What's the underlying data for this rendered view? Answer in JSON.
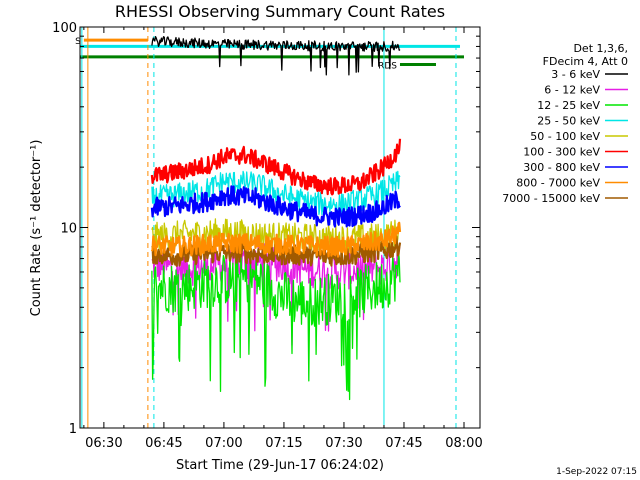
{
  "chart_data": {
    "type": "line",
    "title": "RHESSI Observing Summary Count Rates",
    "xlabel": "Start Time (29-Jun-17 06:24:02)",
    "ylabel": "Count Rate (s⁻¹ detector⁻¹)",
    "y_scale": "log",
    "ylim": [
      1,
      100
    ],
    "y_ticks": [
      {
        "value": 1,
        "label": "1"
      },
      {
        "value": 10,
        "label": "10"
      },
      {
        "value": 100,
        "label": "100"
      }
    ],
    "xlim": [
      "06:24:02",
      "08:04:00"
    ],
    "x_ticks": [
      {
        "time": "06:30",
        "label": "06:30"
      },
      {
        "time": "06:45",
        "label": "06:45"
      },
      {
        "time": "07:00",
        "label": "07:00"
      },
      {
        "time": "07:15",
        "label": "07:15"
      },
      {
        "time": "07:30",
        "label": "07:30"
      },
      {
        "time": "07:45",
        "label": "07:45"
      },
      {
        "time": "08:00",
        "label": "08:00"
      }
    ],
    "legend": {
      "placement": "right",
      "header": [
        "Det 1,3,6,",
        "FDecim 4, Att 0"
      ],
      "entries": [
        {
          "label": "3 - 6 keV",
          "color": "#000000"
        },
        {
          "label": "6 - 12 keV",
          "color": "#e61ee6"
        },
        {
          "label": "12 - 25 keV",
          "color": "#00e600"
        },
        {
          "label": "25 - 50 keV",
          "color": "#00e6e6"
        },
        {
          "label": "50 - 100 keV",
          "color": "#c8c800"
        },
        {
          "label": "100 - 300 keV",
          "color": "#ff0000"
        },
        {
          "label": "300 - 800 keV",
          "color": "#0000ff"
        },
        {
          "label": "800 - 7000 keV",
          "color": "#ff8c00"
        },
        {
          "label": "7000 - 15000 keV",
          "color": "#a05a00"
        }
      ]
    },
    "series": [
      {
        "name": "3 - 6 keV",
        "color": "#000000",
        "x": [
          "06:42",
          "06:48",
          "07:00",
          "07:15",
          "07:30",
          "07:40",
          "07:44"
        ],
        "y": [
          85,
          84,
          82,
          81,
          80,
          80,
          80
        ]
      },
      {
        "name": "6 - 12 keV",
        "color": "#e61ee6",
        "x": [
          "06:42",
          "06:48",
          "07:00",
          "07:10",
          "07:20",
          "07:30",
          "07:40",
          "07:44"
        ],
        "y": [
          6.5,
          6.2,
          6.5,
          6.8,
          6.2,
          6.0,
          6.3,
          7.0
        ]
      },
      {
        "name": "12 - 25 keV",
        "color": "#00e600",
        "x": [
          "06:42",
          "06:48",
          "07:00",
          "07:08",
          "07:14",
          "07:20",
          "07:26",
          "07:32",
          "07:40",
          "07:44"
        ],
        "y": [
          5.2,
          5.0,
          5.5,
          5.6,
          4.6,
          4.2,
          4.4,
          4.6,
          5.2,
          6.0
        ]
      },
      {
        "name": "25 - 50 keV",
        "color": "#00e6e6",
        "x": [
          "06:42",
          "06:48",
          "06:56",
          "07:00",
          "07:08",
          "07:15",
          "07:22",
          "07:30",
          "07:38",
          "07:44"
        ],
        "y": [
          14,
          14.5,
          15.5,
          17,
          16.5,
          14.5,
          13.2,
          13,
          14.5,
          17
        ]
      },
      {
        "name": "50 - 100 keV",
        "color": "#c8c800",
        "x": [
          "06:42",
          "06:48",
          "07:00",
          "07:15",
          "07:30",
          "07:40",
          "07:44"
        ],
        "y": [
          9,
          9.2,
          9.5,
          9.0,
          8.8,
          9.0,
          9.6
        ]
      },
      {
        "name": "100 - 300 keV",
        "color": "#ff0000",
        "x": [
          "06:42",
          "06:46",
          "06:50",
          "06:56",
          "07:00",
          "07:05",
          "07:10",
          "07:16",
          "07:22",
          "07:28",
          "07:34",
          "07:40",
          "07:44"
        ],
        "y": [
          18,
          18.5,
          19.2,
          20.5,
          22.5,
          23,
          21,
          18.5,
          16.5,
          16,
          16.5,
          20,
          25
        ]
      },
      {
        "name": "300 - 800 keV",
        "color": "#0000ff",
        "x": [
          "06:42",
          "06:48",
          "06:56",
          "07:00",
          "07:08",
          "07:15",
          "07:22",
          "07:30",
          "07:38",
          "07:44"
        ],
        "y": [
          12.5,
          12.8,
          13.5,
          14.5,
          14,
          12.5,
          11.5,
          11.2,
          12,
          14
        ]
      },
      {
        "name": "800 - 7000 keV",
        "color": "#ff8c00",
        "x": [
          "06:42",
          "06:48",
          "07:00",
          "07:15",
          "07:30",
          "07:40",
          "07:44"
        ],
        "y": [
          8.2,
          8.0,
          8.4,
          8.2,
          8.0,
          8.6,
          9.5
        ]
      },
      {
        "name": "7000 - 15000 keV",
        "color": "#a05a00",
        "x": [
          "06:42",
          "06:48",
          "07:00",
          "07:15",
          "07:30",
          "07:40",
          "07:44"
        ],
        "y": [
          7.4,
          7.2,
          7.5,
          7.3,
          7.2,
          7.6,
          8.2
        ]
      }
    ],
    "flags": [
      {
        "label": "S",
        "color": "#ff8c00",
        "x_start": "06:25",
        "x_end": "06:41",
        "y": 86
      },
      {
        "label": "",
        "color": "#00e6e6",
        "x_start": "06:24:02",
        "x_end": "07:59",
        "y": 80
      },
      {
        "label": "",
        "color": "#008000",
        "x_start": "06:24:02",
        "x_end": "08:00",
        "y": 71
      },
      {
        "label": "RDS",
        "color": "#008000",
        "x_start": "07:44",
        "x_end": "07:53",
        "y": 65
      }
    ],
    "vertical_markers": [
      {
        "time": "06:24:30",
        "color": "#00e6e6",
        "style": "solid"
      },
      {
        "time": "06:26",
        "color": "#ff8c00",
        "style": "solid"
      },
      {
        "time": "06:41",
        "color": "#ff8c00",
        "style": "dashed"
      },
      {
        "time": "06:42:30",
        "color": "#00e6e6",
        "style": "dashed"
      },
      {
        "time": "07:40",
        "color": "#00e6e6",
        "style": "solid"
      },
      {
        "time": "07:58",
        "color": "#00e6e6",
        "style": "dashed"
      }
    ],
    "footer": "1-Sep-2022 07:15"
  }
}
